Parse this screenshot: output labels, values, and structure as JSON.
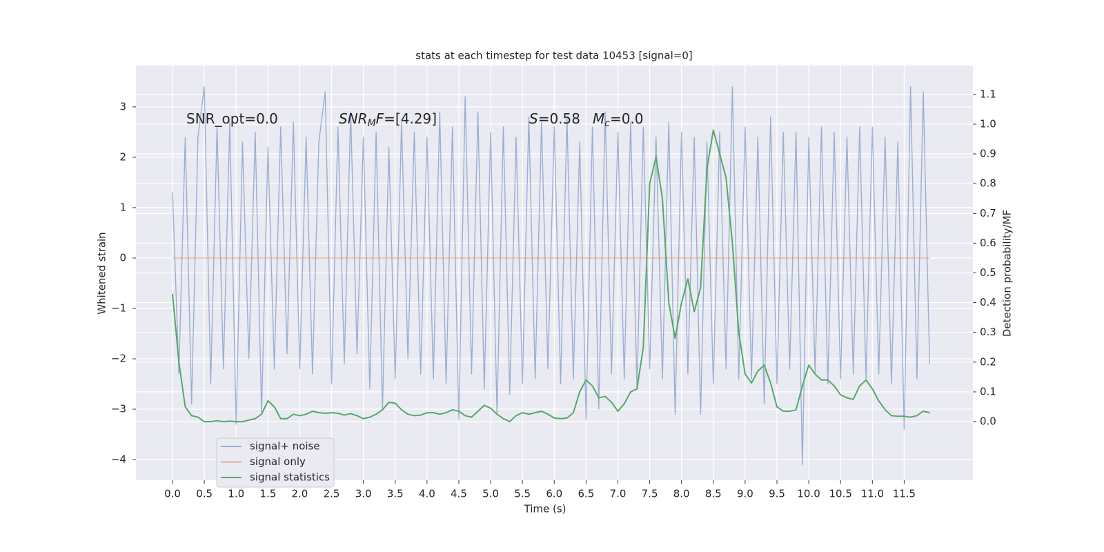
{
  "chart_data": {
    "type": "line",
    "title": "stats at each timestep for test data 10453 [signal=0]",
    "xlabel": "Time (s)",
    "ylabel": "Whitened strain",
    "y2label": "Detection probability/MF",
    "annotations": [
      {
        "segments": [
          {
            "text": "SNR_opt=0.0",
            "style": "normal"
          }
        ]
      },
      {
        "segments": [
          {
            "text": "SNR",
            "style": "italic"
          },
          {
            "text": "M",
            "style": "italic-sub"
          },
          {
            "text": "F",
            "style": "italic"
          },
          {
            "text": "=[4.29]",
            "style": "normal"
          }
        ]
      },
      {
        "segments": [
          {
            "text": "S",
            "style": "italic"
          },
          {
            "text": "=0.58",
            "style": "normal"
          }
        ]
      },
      {
        "segments": [
          {
            "text": "M",
            "style": "italic"
          },
          {
            "text": "c",
            "style": "italic-sub"
          },
          {
            "text": "=0.0",
            "style": "normal"
          }
        ]
      }
    ],
    "x": [
      0,
      0.1,
      0.2,
      0.3,
      0.4,
      0.5,
      0.6,
      0.7,
      0.8,
      0.9,
      1,
      1.1,
      1.2,
      1.3,
      1.4,
      1.5,
      1.6,
      1.7,
      1.8,
      1.9,
      2,
      2.1,
      2.2,
      2.3,
      2.4,
      2.5,
      2.6,
      2.7,
      2.8,
      2.9,
      3,
      3.1,
      3.2,
      3.3,
      3.4,
      3.5,
      3.6,
      3.7,
      3.8,
      3.9,
      4,
      4.1,
      4.2,
      4.3,
      4.4,
      4.5,
      4.6,
      4.7,
      4.8,
      4.9,
      5,
      5.1,
      5.2,
      5.3,
      5.4,
      5.5,
      5.6,
      5.7,
      5.8,
      5.9,
      6,
      6.1,
      6.2,
      6.3,
      6.4,
      6.5,
      6.6,
      6.7,
      6.8,
      6.9,
      7,
      7.1,
      7.2,
      7.3,
      7.4,
      7.5,
      7.6,
      7.7,
      7.8,
      7.9,
      8,
      8.1,
      8.2,
      8.3,
      8.4,
      8.5,
      8.6,
      8.7,
      8.8,
      8.9,
      9,
      9.1,
      9.2,
      9.3,
      9.4,
      9.5,
      9.6,
      9.7,
      9.8,
      9.9,
      10,
      10.1,
      10.2,
      10.3,
      10.4,
      10.5,
      10.6,
      10.7,
      10.8,
      10.9,
      11,
      11.1,
      11.2,
      11.3,
      11.4,
      11.5,
      11.6,
      11.7,
      11.8,
      11.9
    ],
    "series": [
      {
        "name": "signal+ noise",
        "color": "#4c72b0",
        "opacity": 0.5,
        "axis": "y",
        "values": [
          1.3,
          -2.3,
          2.4,
          -2.9,
          2.4,
          3.4,
          -2.5,
          2.6,
          -2.2,
          2.7,
          -3.3,
          2.3,
          -2.0,
          2.5,
          -3.1,
          2.2,
          -2.2,
          2.6,
          -1.9,
          2.7,
          -2.2,
          2.4,
          -2.3,
          2.3,
          3.3,
          -2.5,
          2.6,
          -2.1,
          2.9,
          -1.9,
          2.4,
          -2.6,
          2.5,
          -3.0,
          2.2,
          -2.4,
          2.7,
          -2.0,
          2.5,
          -2.3,
          2.4,
          -2.4,
          2.9,
          -2.5,
          2.6,
          -3.2,
          3.2,
          -2.3,
          2.9,
          -2.6,
          2.5,
          -3.1,
          2.6,
          -2.7,
          2.4,
          -2.5,
          2.8,
          -2.4,
          2.7,
          -2.2,
          2.6,
          -2.5,
          2.8,
          -2.4,
          2.3,
          -3.2,
          2.6,
          -3.0,
          2.9,
          -2.3,
          2.5,
          -2.4,
          2.7,
          -2.6,
          2.6,
          -2.2,
          2.4,
          -2.4,
          2.7,
          -3.1,
          2.5,
          -2.3,
          2.4,
          -3.1,
          2.3,
          -2.5,
          2.5,
          -2.2,
          3.4,
          -2.4,
          2.6,
          -2.4,
          2.4,
          -2.9,
          2.8,
          -2.5,
          2.5,
          -2.2,
          2.5,
          -4.1,
          2.4,
          -2.3,
          2.6,
          -2.5,
          2.5,
          -2.4,
          2.4,
          -2.3,
          2.6,
          -2.4,
          2.6,
          -2.3,
          2.4,
          -2.5,
          2.3,
          -3.4,
          3.4,
          -2.4,
          3.3,
          -2.1
        ]
      },
      {
        "name": "signal only",
        "color": "#dd8452",
        "opacity": 0.6,
        "axis": "y",
        "values": [
          0,
          0,
          0,
          0,
          0,
          0,
          0,
          0,
          0,
          0,
          0,
          0,
          0,
          0,
          0,
          0,
          0,
          0,
          0,
          0,
          0,
          0,
          0,
          0,
          0,
          0,
          0,
          0,
          0,
          0,
          0,
          0,
          0,
          0,
          0,
          0,
          0,
          0,
          0,
          0,
          0,
          0,
          0,
          0,
          0,
          0,
          0,
          0,
          0,
          0,
          0,
          0,
          0,
          0,
          0,
          0,
          0,
          0,
          0,
          0,
          0,
          0,
          0,
          0,
          0,
          0,
          0,
          0,
          0,
          0,
          0,
          0,
          0,
          0,
          0,
          0,
          0,
          0,
          0,
          0,
          0,
          0,
          0,
          0,
          0,
          0,
          0,
          0,
          0,
          0,
          0,
          0,
          0,
          0,
          0,
          0,
          0,
          0,
          0,
          0,
          0,
          0,
          0,
          0,
          0,
          0,
          0,
          0,
          0,
          0,
          0,
          0,
          0,
          0,
          0,
          0,
          0,
          0,
          0,
          0
        ]
      },
      {
        "name": "signal statistics",
        "color": "#55a868",
        "opacity": 1,
        "axis": "y2",
        "values": [
          0.43,
          0.2,
          0.05,
          0.02,
          0.015,
          0,
          0,
          0.003,
          0,
          0.002,
          0,
          0,
          0.005,
          0.01,
          0.025,
          0.07,
          0.05,
          0.01,
          0.01,
          0.025,
          0.02,
          0.025,
          0.035,
          0.03,
          0.028,
          0.03,
          0.028,
          0.022,
          0.027,
          0.02,
          0.01,
          0.015,
          0.025,
          0.04,
          0.065,
          0.062,
          0.04,
          0.025,
          0.02,
          0.022,
          0.03,
          0.03,
          0.025,
          0.03,
          0.04,
          0.035,
          0.02,
          0.015,
          0.035,
          0.055,
          0.045,
          0.025,
          0.01,
          0,
          0.02,
          0.03,
          0.025,
          0.03,
          0.035,
          0.025,
          0.012,
          0.01,
          0.012,
          0.03,
          0.1,
          0.14,
          0.12,
          0.08,
          0.085,
          0.065,
          0.035,
          0.06,
          0.1,
          0.11,
          0.25,
          0.8,
          0.89,
          0.75,
          0.4,
          0.28,
          0.4,
          0.48,
          0.37,
          0.45,
          0.85,
          0.98,
          0.9,
          0.82,
          0.6,
          0.3,
          0.16,
          0.13,
          0.17,
          0.19,
          0.13,
          0.05,
          0.035,
          0.035,
          0.04,
          0.12,
          0.19,
          0.16,
          0.14,
          0.14,
          0.12,
          0.09,
          0.08,
          0.075,
          0.12,
          0.14,
          0.11,
          0.07,
          0.04,
          0.02,
          0.018,
          0.018,
          0.015,
          0.02,
          0.035,
          0.03
        ]
      }
    ],
    "xlim": [
      -0.575,
      12.58
    ],
    "xticks": [
      {
        "value": 0,
        "label": "0.0"
      },
      0.5,
      {
        "value": 1,
        "label": "1.0"
      },
      1.5,
      {
        "value": 2,
        "label": "2.0"
      },
      2.5,
      {
        "value": 3,
        "label": "3.0"
      },
      3.5,
      {
        "value": 4,
        "label": "4.0"
      },
      4.5,
      {
        "value": 5,
        "label": "5.0"
      },
      5.5,
      {
        "value": 6,
        "label": "6.0"
      },
      6.5,
      {
        "value": 7,
        "label": "7.0"
      },
      7.5,
      {
        "value": 8,
        "label": "8.0"
      },
      8.5,
      {
        "value": 9,
        "label": "9.0"
      },
      9.5,
      {
        "value": 10,
        "label": "10.0"
      },
      10.5,
      {
        "value": 11,
        "label": "11.0"
      },
      11.5
    ],
    "ylim": [
      -4.41,
      3.82
    ],
    "yticks": [
      {
        "value": -4,
        "label": "−4"
      },
      {
        "value": -3,
        "label": "−3"
      },
      {
        "value": -2,
        "label": "−2"
      },
      {
        "value": -1,
        "label": "−1"
      },
      0,
      1,
      2,
      3
    ],
    "y2lim": [
      -0.197,
      1.197
    ],
    "y2ticks": [
      {
        "value": 0,
        "label": "0.0"
      },
      0.1,
      0.2,
      0.3,
      0.4,
      0.5,
      0.6,
      0.7,
      0.8,
      0.9,
      {
        "value": 1,
        "label": "1.0"
      },
      1.1
    ],
    "grid": true,
    "legend": "lower left"
  }
}
